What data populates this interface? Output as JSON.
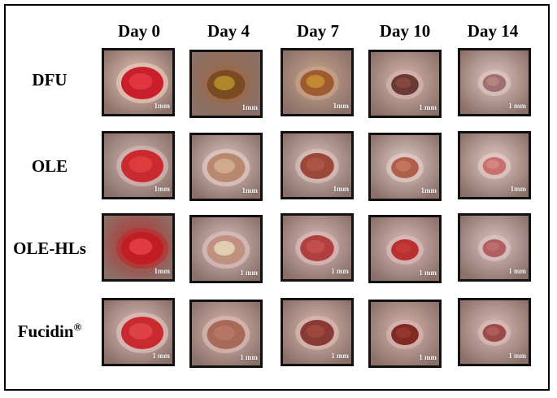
{
  "columns": [
    "Day 0",
    "Day 4",
    "Day 7",
    "Day 10",
    "Day 14"
  ],
  "rows": [
    {
      "label": "DFU",
      "label_sup": "",
      "cells": [
        {
          "scale": "1mm",
          "skin": "#e9c6b8",
          "wound": "#c81f2a",
          "core": "#e63a44"
        },
        {
          "scale": "1mm",
          "skin": "#9a6a4a",
          "wound": "#7a4a22",
          "core": "#b8902a"
        },
        {
          "scale": "1mm",
          "skin": "#c9a48c",
          "wound": "#a05a30",
          "core": "#c69030"
        },
        {
          "scale": "1 mm",
          "skin": "#d7b6ac",
          "wound": "#6a3a36",
          "core": "#8a4a40"
        },
        {
          "scale": "1 mm",
          "skin": "#e0c6c0",
          "wound": "#a07070",
          "core": "#b8887e"
        }
      ]
    },
    {
      "label": "OLE",
      "label_sup": "",
      "cells": [
        {
          "scale": "1mm",
          "skin": "#d4b8b4",
          "wound": "#c82a30",
          "core": "#e04040"
        },
        {
          "scale": "1mm",
          "skin": "#e2cac6",
          "wound": "#b88870",
          "core": "#d4b090"
        },
        {
          "scale": "1mm",
          "skin": "#dcc0bc",
          "wound": "#9a4838",
          "core": "#b05848"
        },
        {
          "scale": "1mm",
          "skin": "#e2ccc8",
          "wound": "#b06048",
          "core": "#c87860"
        },
        {
          "scale": "1mm",
          "skin": "#e4cac4",
          "wound": "#c87070",
          "core": "#d88884"
        }
      ]
    },
    {
      "label": "OLE-HLs",
      "label_sup": "",
      "cells": [
        {
          "scale": "1mm",
          "skin": "#b83030",
          "wound": "#c01e24",
          "core": "#e84048"
        },
        {
          "scale": "1 mm",
          "skin": "#dcc0c0",
          "wound": "#c09080",
          "core": "#e8d8b8"
        },
        {
          "scale": "1 mm",
          "skin": "#dcbcbc",
          "wound": "#b04040",
          "core": "#c85050"
        },
        {
          "scale": "1 mm",
          "skin": "#dcbcbc",
          "wound": "#b83030",
          "core": "#c83838"
        },
        {
          "scale": "1 mm",
          "skin": "#dcc4c4",
          "wound": "#b06060",
          "core": "#c07070"
        }
      ]
    },
    {
      "label": "Fucidin",
      "label_sup": "®",
      "cells": [
        {
          "scale": "1 mm",
          "skin": "#e0c0bc",
          "wound": "#c82a30",
          "core": "#e04848"
        },
        {
          "scale": "1 mm",
          "skin": "#dcbab4",
          "wound": "#a86a58",
          "core": "#b87868"
        },
        {
          "scale": "1 mm",
          "skin": "#dcbab4",
          "wound": "#8a3a34",
          "core": "#a04a40"
        },
        {
          "scale": "1 mm",
          "skin": "#d8b6b0",
          "wound": "#802a24",
          "core": "#983830"
        },
        {
          "scale": "1 mm",
          "skin": "#dcbcb8",
          "wound": "#9a4a48",
          "core": "#b06060"
        }
      ]
    }
  ]
}
